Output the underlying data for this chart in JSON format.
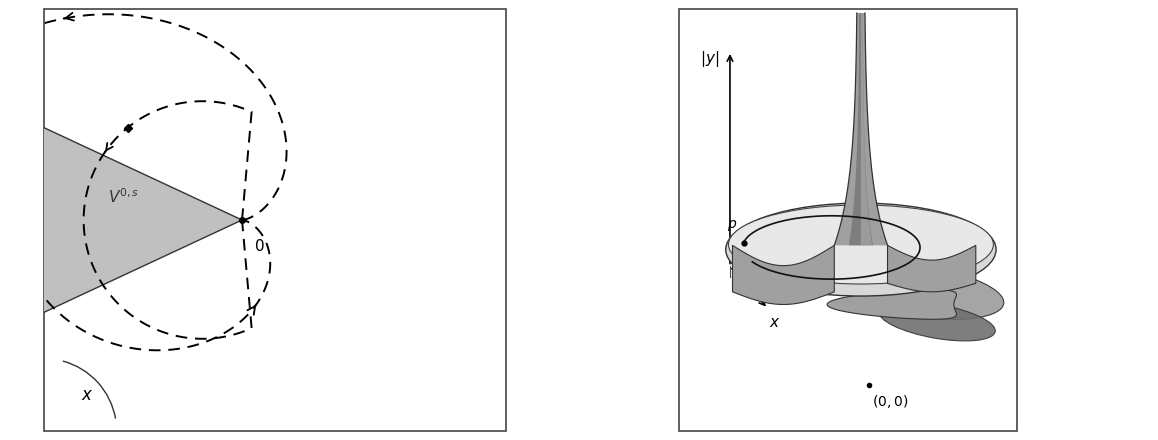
{
  "fig_width": 11.58,
  "fig_height": 4.4,
  "background": "#ffffff",
  "border_color": "#444444",
  "gray_fill": "#c0c0c0",
  "gray_medium": "#a0a0a0",
  "gray_dark": "#707070",
  "gray_light": "#d8d8d8",
  "gray_lightest": "#e8e8e8"
}
